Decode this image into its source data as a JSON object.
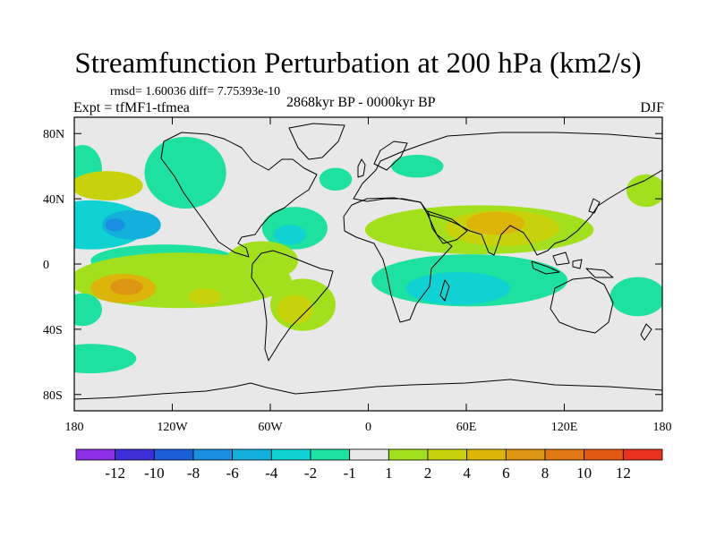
{
  "figure": {
    "title": "Streamfunction Perturbation at 200 hPa (km2/s)",
    "stats": "rmsd= 1.60036 diff= 7.75393e-10",
    "experiment": "Expt = tfMF1-tfmea",
    "period": "2868kyr BP - 0000kyr BP",
    "season": "DJF"
  },
  "chart_data": {
    "type": "heatmap",
    "projection": "cylindrical equidistant",
    "xlim": [
      -180,
      180
    ],
    "ylim": [
      -90,
      90
    ],
    "x_ticks": [
      {
        "value": -180,
        "label": "180"
      },
      {
        "value": -120,
        "label": "120W"
      },
      {
        "value": -60,
        "label": "60W"
      },
      {
        "value": 0,
        "label": "0"
      },
      {
        "value": 60,
        "label": "60E"
      },
      {
        "value": 120,
        "label": "120E"
      },
      {
        "value": 180,
        "label": "180"
      }
    ],
    "y_ticks": [
      {
        "value": 80,
        "label": "80N"
      },
      {
        "value": 40,
        "label": "40N"
      },
      {
        "value": 0,
        "label": "0"
      },
      {
        "value": -40,
        "label": "40S"
      },
      {
        "value": -80,
        "label": "80S"
      }
    ],
    "colorbar": {
      "colors": [
        "#8c2fe6",
        "#3d2fd8",
        "#1a5fd8",
        "#1a8fe0",
        "#14b0dc",
        "#10d2d2",
        "#1ee0a0",
        "#e8e8e8",
        "#a2e01e",
        "#c8d20a",
        "#dcb40a",
        "#dc9614",
        "#e07814",
        "#e05a14",
        "#e6321e"
      ],
      "labels": [
        "-12",
        "-10",
        "-8",
        "-6",
        "-4",
        "-2",
        "-1",
        "1",
        "2",
        "4",
        "6",
        "8",
        "10",
        "12"
      ]
    },
    "anomalies": [
      {
        "lon": -160,
        "lat": 48,
        "level": 2,
        "rlon": 22,
        "rlat": 9
      },
      {
        "lon": -170,
        "lat": 24,
        "level": -2,
        "rlon": 35,
        "rlat": 15
      },
      {
        "lon": -145,
        "lat": 24,
        "level": -4,
        "rlon": 18,
        "rlat": 9
      },
      {
        "lon": -155,
        "lat": 24,
        "level": -6,
        "rlon": 6,
        "rlat": 4
      },
      {
        "lon": -112,
        "lat": 56,
        "level": -1,
        "rlon": 25,
        "rlat": 22
      },
      {
        "lon": -175,
        "lat": 58,
        "level": -1,
        "rlon": 12,
        "rlat": 15
      },
      {
        "lon": -45,
        "lat": 22,
        "level": -1,
        "rlon": 20,
        "rlat": 13
      },
      {
        "lon": -48,
        "lat": 18,
        "level": -2,
        "rlon": 10,
        "rlat": 6
      },
      {
        "lon": -20,
        "lat": 52,
        "level": -1,
        "rlon": 10,
        "rlat": 7
      },
      {
        "lon": -125,
        "lat": 2,
        "level": -1,
        "rlon": 45,
        "rlat": 10
      },
      {
        "lon": -115,
        "lat": -10,
        "level": 1,
        "rlon": 68,
        "rlat": 17
      },
      {
        "lon": -150,
        "lat": -15,
        "level": 4,
        "rlon": 20,
        "rlat": 9
      },
      {
        "lon": -148,
        "lat": -14,
        "level": 6,
        "rlon": 10,
        "rlat": 5
      },
      {
        "lon": -100,
        "lat": -20,
        "level": 2,
        "rlon": 10,
        "rlat": 5
      },
      {
        "lon": -65,
        "lat": 2,
        "level": 1,
        "rlon": 22,
        "rlat": 12
      },
      {
        "lon": -40,
        "lat": -25,
        "level": 1,
        "rlon": 20,
        "rlat": 16
      },
      {
        "lon": -45,
        "lat": -28,
        "level": 2,
        "rlon": 11,
        "rlat": 9
      },
      {
        "lon": -175,
        "lat": -28,
        "level": -1,
        "rlon": 12,
        "rlat": 10
      },
      {
        "lon": -170,
        "lat": -58,
        "level": -1,
        "rlon": 28,
        "rlat": 9
      },
      {
        "lon": 30,
        "lat": 60,
        "level": -1,
        "rlon": 16,
        "rlat": 7
      },
      {
        "lon": 68,
        "lat": 21,
        "level": 1,
        "rlon": 70,
        "rlat": 15
      },
      {
        "lon": 82,
        "lat": 22,
        "level": 2,
        "rlon": 35,
        "rlat": 11
      },
      {
        "lon": 78,
        "lat": 25,
        "level": 4,
        "rlon": 18,
        "rlat": 7
      },
      {
        "lon": 62,
        "lat": -10,
        "level": -1,
        "rlon": 60,
        "rlat": 16
      },
      {
        "lon": 55,
        "lat": -15,
        "level": -2,
        "rlon": 32,
        "rlat": 10
      },
      {
        "lon": 170,
        "lat": 45,
        "level": 1,
        "rlon": 12,
        "rlat": 10
      },
      {
        "lon": 165,
        "lat": -20,
        "level": -1,
        "rlon": 17,
        "rlat": 12
      }
    ]
  }
}
